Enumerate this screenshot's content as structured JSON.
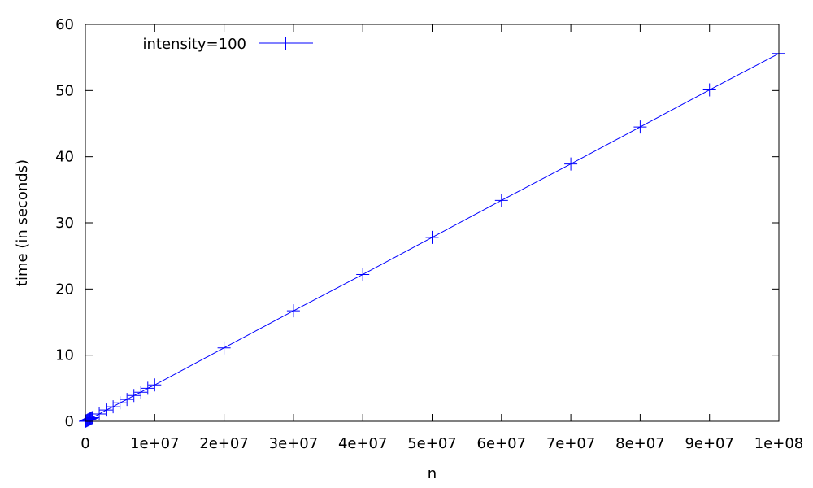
{
  "chart_data": {
    "type": "line",
    "xlabel": "n",
    "ylabel": "time (in seconds)",
    "xlim": [
      0,
      100000000
    ],
    "ylim": [
      0,
      60
    ],
    "x_ticks": [
      0,
      10000000,
      20000000,
      30000000,
      40000000,
      50000000,
      60000000,
      70000000,
      80000000,
      90000000,
      100000000
    ],
    "x_tick_labels": [
      "0",
      "1e+07",
      "2e+07",
      "3e+07",
      "4e+07",
      "5e+07",
      "6e+07",
      "7e+07",
      "8e+07",
      "9e+07",
      "1e+08"
    ],
    "y_ticks": [
      0,
      10,
      20,
      30,
      40,
      50,
      60
    ],
    "y_tick_labels": [
      "0",
      "10",
      "20",
      "30",
      "40",
      "50",
      "60"
    ],
    "grid": false,
    "legend_position": "top-left",
    "series": [
      {
        "name": "intensity=100",
        "color": "#0000ff",
        "marker": "plus",
        "x": [
          0,
          100000,
          200000,
          300000,
          400000,
          500000,
          600000,
          700000,
          800000,
          900000,
          1000000,
          2000000,
          3000000,
          4000000,
          5000000,
          6000000,
          7000000,
          8000000,
          9000000,
          10000000,
          20000000,
          30000000,
          40000000,
          50000000,
          60000000,
          70000000,
          80000000,
          90000000,
          100000000
        ],
        "y": [
          0,
          0.06,
          0.11,
          0.17,
          0.22,
          0.28,
          0.33,
          0.39,
          0.44,
          0.5,
          0.55,
          1.1,
          1.7,
          2.2,
          2.8,
          3.3,
          3.9,
          4.4,
          5.0,
          5.5,
          11.1,
          16.7,
          22.2,
          27.8,
          33.4,
          38.9,
          44.5,
          50.1,
          55.6
        ]
      }
    ]
  }
}
